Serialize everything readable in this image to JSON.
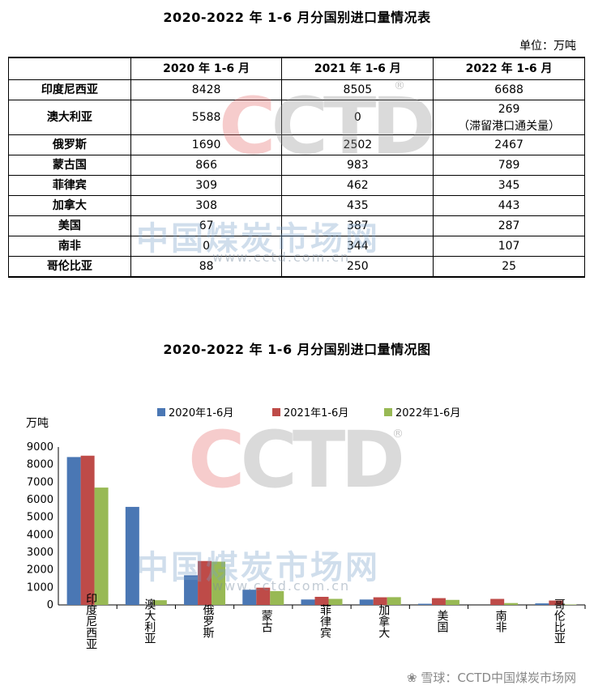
{
  "table": {
    "title": "2020-2022 年 1-6 月分国别进口量情况表",
    "unit": "单位：万吨",
    "headers": [
      "",
      "2020 年 1-6 月",
      "2021 年 1-6 月",
      "2022 年 1-6 月"
    ],
    "rows": [
      {
        "country": "印度尼西亚",
        "v2020": "8428",
        "v2021": "8505",
        "v2022": "6688",
        "note": ""
      },
      {
        "country": "澳大利亚",
        "v2020": "5588",
        "v2021": "0",
        "v2022": "269",
        "note": "（滞留港口通关量）"
      },
      {
        "country": "俄罗斯",
        "v2020": "1690",
        "v2021": "2502",
        "v2022": "2467",
        "note": ""
      },
      {
        "country": "蒙古国",
        "v2020": "866",
        "v2021": "983",
        "v2022": "789",
        "note": ""
      },
      {
        "country": "菲律宾",
        "v2020": "309",
        "v2021": "462",
        "v2022": "345",
        "note": ""
      },
      {
        "country": "加拿大",
        "v2020": "308",
        "v2021": "435",
        "v2022": "443",
        "note": ""
      },
      {
        "country": "美国",
        "v2020": "67",
        "v2021": "387",
        "v2022": "287",
        "note": ""
      },
      {
        "country": "南非",
        "v2020": "0",
        "v2021": "344",
        "v2022": "107",
        "note": ""
      },
      {
        "country": "哥伦比亚",
        "v2020": "88",
        "v2021": "250",
        "v2022": "25",
        "note": ""
      }
    ]
  },
  "watermark": {
    "logo_c1": "C",
    "logo_c2": "C",
    "logo_rest": "TD",
    "reg": "®",
    "cn_name": "中国煤炭市场网",
    "url": "www.cctd.com.cn"
  },
  "footer": "❀ 雪球：CCTD中国煤炭市场网",
  "chart_data": {
    "type": "bar",
    "title": "2020-2022 年 1-6 月分国别进口量情况图",
    "ylabel": "万吨",
    "xlabel": "",
    "ylim": [
      0,
      9000
    ],
    "yticks": [
      0,
      1000,
      2000,
      3000,
      4000,
      5000,
      6000,
      7000,
      8000,
      9000
    ],
    "legend_position": "top",
    "categories": [
      "印度尼西亚",
      "澳大利亚",
      "俄罗斯",
      "蒙古",
      "菲律宾",
      "加拿大",
      "美国",
      "南非",
      "哥伦比亚"
    ],
    "series": [
      {
        "name": "2020年1-6月",
        "color": "#4a77b4",
        "values": [
          8428,
          5588,
          1690,
          866,
          309,
          308,
          67,
          0,
          88
        ]
      },
      {
        "name": "2021年1-6月",
        "color": "#be4b48",
        "values": [
          8505,
          0,
          2502,
          983,
          462,
          435,
          387,
          344,
          250
        ]
      },
      {
        "name": "2022年1-6月",
        "color": "#98b954",
        "values": [
          6688,
          269,
          2467,
          789,
          345,
          443,
          287,
          107,
          25
        ]
      }
    ]
  }
}
